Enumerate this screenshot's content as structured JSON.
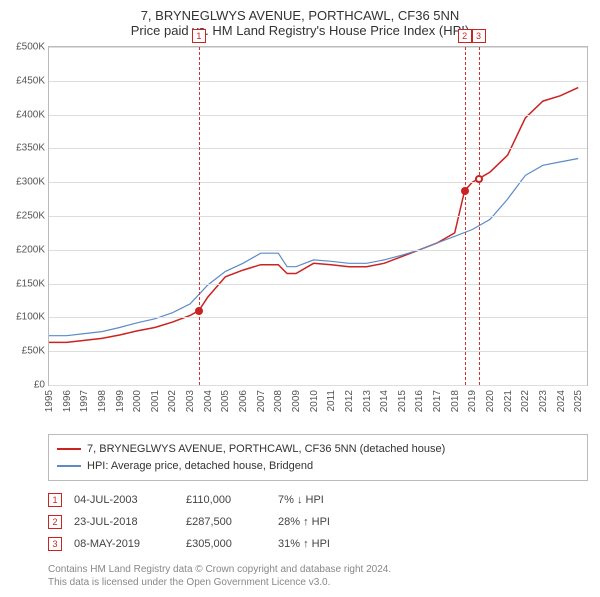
{
  "title": {
    "line1": "7, BRYNEGLWYS AVENUE, PORTHCAWL, CF36 5NN",
    "line2": "Price paid vs. HM Land Registry's House Price Index (HPI)"
  },
  "chart": {
    "type": "line",
    "background_color": "#ffffff",
    "grid_color": "#dddddd",
    "border_color": "#bbbbbb",
    "yaxis": {
      "min": 0,
      "max": 500000,
      "ticks": [
        0,
        50000,
        100000,
        150000,
        200000,
        250000,
        300000,
        350000,
        400000,
        450000,
        500000
      ],
      "tick_labels": [
        "£0",
        "£50K",
        "£100K",
        "£150K",
        "£200K",
        "£250K",
        "£300K",
        "£350K",
        "£400K",
        "£450K",
        "£500K"
      ],
      "label_fontsize": 10,
      "label_color": "#555555"
    },
    "xaxis": {
      "min": 1995,
      "max": 2025.5,
      "ticks": [
        1995,
        1996,
        1997,
        1998,
        1999,
        2000,
        2001,
        2002,
        2003,
        2004,
        2005,
        2006,
        2007,
        2008,
        2009,
        2010,
        2011,
        2012,
        2013,
        2014,
        2015,
        2016,
        2017,
        2018,
        2019,
        2020,
        2021,
        2022,
        2023,
        2024,
        2025
      ],
      "label_fontsize": 10,
      "label_color": "#555555",
      "label_rotation": -90
    },
    "series": [
      {
        "key": "property",
        "color": "#cc2222",
        "line_width": 1.5,
        "data": [
          [
            1995,
            63000
          ],
          [
            1996,
            63000
          ],
          [
            1997,
            66000
          ],
          [
            1998,
            69000
          ],
          [
            1999,
            74000
          ],
          [
            2000,
            80000
          ],
          [
            2001,
            85000
          ],
          [
            2002,
            93000
          ],
          [
            2003,
            103000
          ],
          [
            2003.5,
            110000
          ],
          [
            2004,
            130000
          ],
          [
            2005,
            160000
          ],
          [
            2006,
            170000
          ],
          [
            2007,
            178000
          ],
          [
            2008,
            178000
          ],
          [
            2008.5,
            165000
          ],
          [
            2009,
            165000
          ],
          [
            2010,
            180000
          ],
          [
            2011,
            178000
          ],
          [
            2012,
            175000
          ],
          [
            2013,
            175000
          ],
          [
            2014,
            180000
          ],
          [
            2015,
            190000
          ],
          [
            2016,
            200000
          ],
          [
            2017,
            210000
          ],
          [
            2018,
            225000
          ],
          [
            2018.56,
            287500
          ],
          [
            2019,
            300000
          ],
          [
            2019.35,
            305000
          ],
          [
            2020,
            315000
          ],
          [
            2021,
            340000
          ],
          [
            2022,
            395000
          ],
          [
            2023,
            420000
          ],
          [
            2024,
            428000
          ],
          [
            2025,
            440000
          ]
        ]
      },
      {
        "key": "hpi",
        "color": "#5b8bc7",
        "line_width": 1.2,
        "data": [
          [
            1995,
            73000
          ],
          [
            1996,
            73000
          ],
          [
            1997,
            76000
          ],
          [
            1998,
            79000
          ],
          [
            1999,
            85000
          ],
          [
            2000,
            92000
          ],
          [
            2001,
            98000
          ],
          [
            2002,
            107000
          ],
          [
            2003,
            120000
          ],
          [
            2004,
            148000
          ],
          [
            2005,
            168000
          ],
          [
            2006,
            180000
          ],
          [
            2007,
            195000
          ],
          [
            2008,
            195000
          ],
          [
            2008.5,
            175000
          ],
          [
            2009,
            175000
          ],
          [
            2010,
            185000
          ],
          [
            2011,
            183000
          ],
          [
            2012,
            180000
          ],
          [
            2013,
            180000
          ],
          [
            2014,
            185000
          ],
          [
            2015,
            192000
          ],
          [
            2016,
            200000
          ],
          [
            2017,
            210000
          ],
          [
            2018,
            220000
          ],
          [
            2019,
            230000
          ],
          [
            2020,
            245000
          ],
          [
            2021,
            275000
          ],
          [
            2022,
            310000
          ],
          [
            2023,
            325000
          ],
          [
            2024,
            330000
          ],
          [
            2025,
            335000
          ]
        ]
      }
    ],
    "events": [
      {
        "num": "1",
        "year": 2003.5,
        "price": 110000,
        "dot_filled": true
      },
      {
        "num": "2",
        "year": 2018.56,
        "price": 287500,
        "dot_filled": true
      },
      {
        "num": "3",
        "year": 2019.35,
        "price": 305000,
        "dot_filled": false
      }
    ],
    "event_line_color": "#cc3333"
  },
  "legend": {
    "items": [
      {
        "color": "#cc2222",
        "label": "7, BRYNEGLWYS AVENUE, PORTHCAWL, CF36 5NN (detached house)"
      },
      {
        "color": "#5b8bc7",
        "label": "HPI: Average price, detached house, Bridgend"
      }
    ]
  },
  "events_table": {
    "rows": [
      {
        "num": "1",
        "date": "04-JUL-2003",
        "price": "£110,000",
        "pct": "7% ↓ HPI"
      },
      {
        "num": "2",
        "date": "23-JUL-2018",
        "price": "£287,500",
        "pct": "28% ↑ HPI"
      },
      {
        "num": "3",
        "date": "08-MAY-2019",
        "price": "£305,000",
        "pct": "31% ↑ HPI"
      }
    ]
  },
  "footer": {
    "line1": "Contains HM Land Registry data © Crown copyright and database right 2024.",
    "line2": "This data is licensed under the Open Government Licence v3.0."
  }
}
